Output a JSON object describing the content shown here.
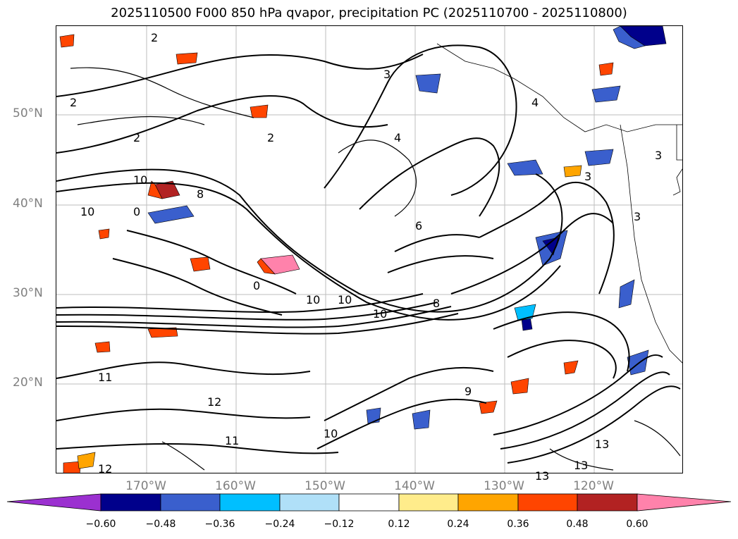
{
  "title": "2025110500 F000 850 hPa qvapor, precipitation PC (2025110700 - 2025110800)",
  "lat_labels": [
    "50°N",
    "40°N",
    "30°N",
    "20°N"
  ],
  "lon_labels": [
    "170°W",
    "160°W",
    "150°W",
    "140°W",
    "130°W",
    "120°W"
  ],
  "colorbar": {
    "ticks": [
      "−0.60",
      "−0.48",
      "−0.36",
      "−0.24",
      "−0.12",
      "0.12",
      "0.24",
      "0.36",
      "0.48",
      "0.60"
    ],
    "colors": [
      "#9b30d0",
      "#00008b",
      "#3a5fcd",
      "#00bfff",
      "#b0e0f8",
      "#ffffff",
      "#ffec8b",
      "#ffa500",
      "#ff4500",
      "#b22222",
      "#ff82ab"
    ]
  },
  "contour_labels": [
    "2",
    "2",
    "2",
    "3",
    "4",
    "2",
    "3",
    "4",
    "3",
    "3",
    "10",
    "0",
    "8",
    "10",
    "0",
    "10",
    "10",
    "10",
    "6",
    "8",
    "12",
    "13",
    "13",
    "13",
    "11",
    "12",
    "10",
    "9",
    "11"
  ]
}
